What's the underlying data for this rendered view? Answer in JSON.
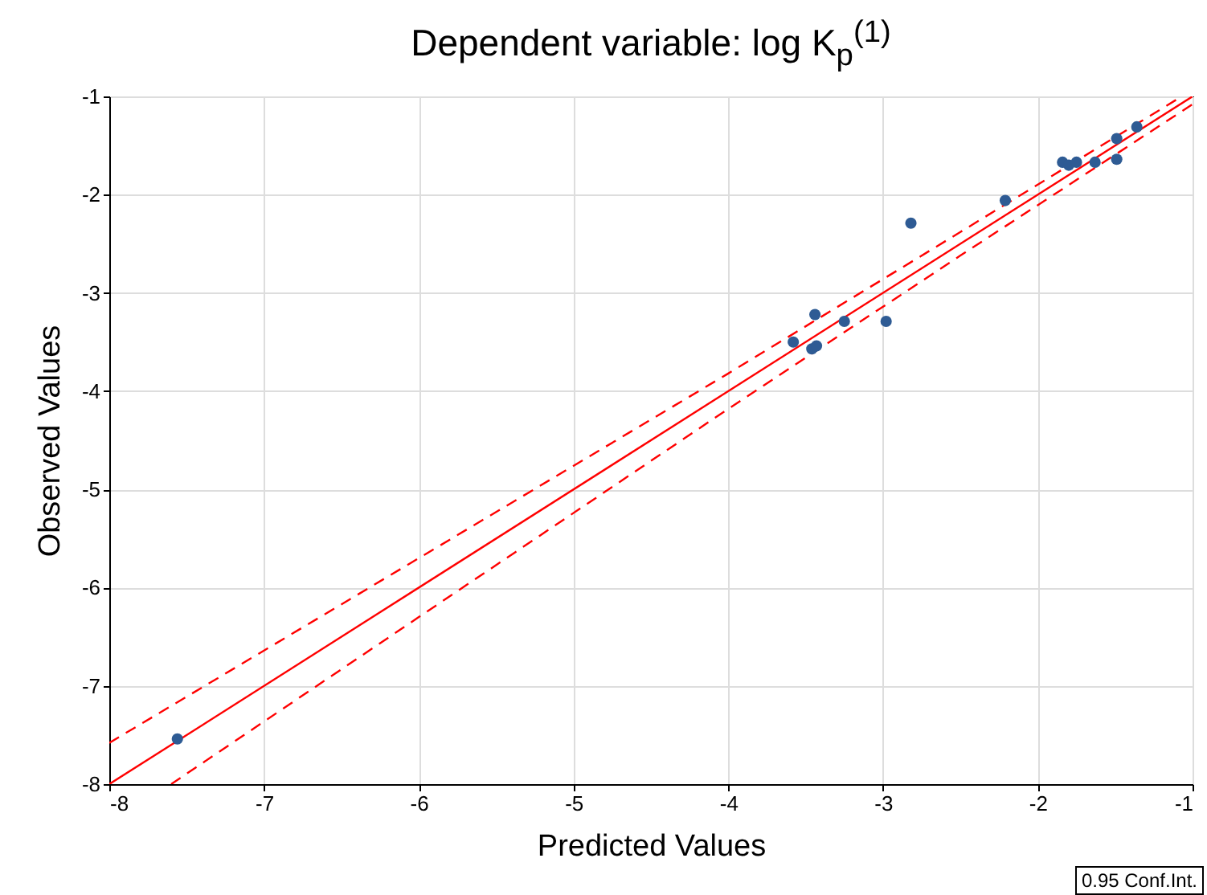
{
  "chart_data": {
    "type": "scatter",
    "title": "Dependent variable: log K$_{p}$$^{(1)}$",
    "xlabel": "Predicted Values",
    "ylabel": "Observed Values",
    "xlim": [
      -8,
      -1
    ],
    "ylim": [
      -8,
      -1
    ],
    "xticks": [
      -8,
      -7,
      -6,
      -5,
      -4,
      -3,
      -2,
      -1
    ],
    "yticks": [
      -8,
      -7,
      -6,
      -5,
      -4,
      -3,
      -2,
      -1
    ],
    "grid": true,
    "series": [
      {
        "marker": "circle",
        "color": "#2e5b94",
        "x": [
          -7.56,
          -3.58,
          -3.44,
          -3.46,
          -3.43,
          -3.25,
          -2.98,
          -2.82,
          -2.21,
          -1.84,
          -1.8,
          -1.75,
          -1.63,
          -1.49,
          -1.49,
          -1.36
        ],
        "values": [
          -7.54,
          -3.5,
          -3.22,
          -3.57,
          -3.54,
          -3.29,
          -3.29,
          -2.29,
          -2.06,
          -1.67,
          -1.7,
          -1.67,
          -1.67,
          -1.64,
          -1.43,
          -1.31
        ]
      },
      {
        "type": "line",
        "color": "#ff0000",
        "line_style": "solid",
        "x": [
          -8,
          -1
        ],
        "values": [
          -8,
          -1
        ]
      },
      {
        "type": "line",
        "color": "#ff0000",
        "line_style": "dashed",
        "x": [
          -8,
          -6,
          -4,
          -2.5,
          -1.07
        ],
        "values": [
          -7.58,
          -5.7,
          -3.82,
          -2.38,
          -1.0
        ]
      },
      {
        "type": "line",
        "color": "#ff0000",
        "line_style": "dashed",
        "x": [
          -7.6,
          -6,
          -4,
          -2.5,
          -1
        ],
        "values": [
          -8,
          -6.3,
          -4.18,
          -2.62,
          -1.08
        ]
      }
    ],
    "annotations": [
      "0.95 Conf.Int."
    ]
  }
}
